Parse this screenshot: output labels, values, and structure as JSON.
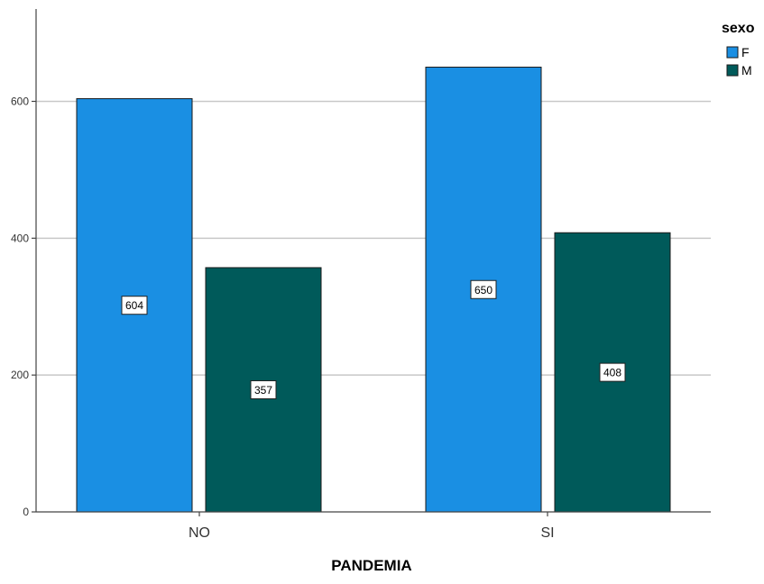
{
  "chart_data": {
    "type": "bar",
    "categories": [
      "NO",
      "SI"
    ],
    "series": [
      {
        "name": "F",
        "values": [
          604,
          650
        ],
        "color": "#1a8fe3"
      },
      {
        "name": "M",
        "values": [
          357,
          408
        ],
        "color": "#005a5a"
      }
    ],
    "data_labels": [
      [
        "604",
        "650"
      ],
      [
        "357",
        "408"
      ]
    ],
    "xlabel": "PANDEMIA",
    "ylabel": "",
    "ylim": [
      0,
      740
    ],
    "yticks": [
      0,
      200,
      400,
      600
    ],
    "grid": true,
    "legend": {
      "title": "sexo",
      "entries": [
        "F",
        "M"
      ],
      "placement": "top-right"
    }
  }
}
